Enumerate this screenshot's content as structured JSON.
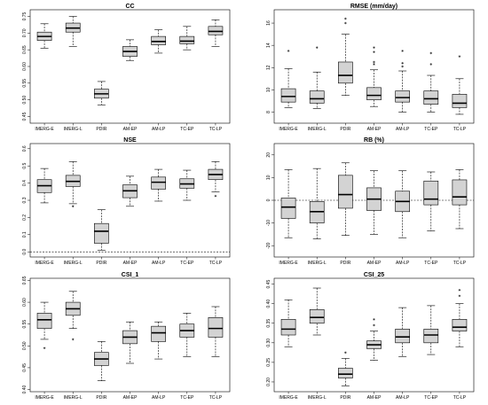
{
  "chart_data": [
    {
      "type": "boxplot",
      "title": "CC",
      "categories": [
        "IMERG-E",
        "IMERG-L",
        "PDIR",
        "AM-EP",
        "AM-LP",
        "TC-EP",
        "TC-LP"
      ],
      "ylim": [
        0.43,
        0.77
      ],
      "yticks": [
        0.45,
        0.5,
        0.55,
        0.6,
        0.65,
        0.7,
        0.75
      ],
      "ytick_labels": [
        "0.45",
        "0.50",
        "0.55",
        "0.60",
        "0.65",
        "0.70",
        "0.75"
      ],
      "box_color": "#d3d3d3",
      "reference_line": null,
      "boxes": [
        {
          "min": 0.655,
          "q1": 0.678,
          "median": 0.69,
          "q3": 0.703,
          "max": 0.728,
          "outliers": []
        },
        {
          "min": 0.66,
          "q1": 0.703,
          "median": 0.715,
          "q3": 0.73,
          "max": 0.75,
          "outliers": []
        },
        {
          "min": 0.485,
          "q1": 0.505,
          "median": 0.518,
          "q3": 0.532,
          "max": 0.555,
          "outliers": []
        },
        {
          "min": 0.618,
          "q1": 0.63,
          "median": 0.645,
          "q3": 0.66,
          "max": 0.68,
          "outliers": []
        },
        {
          "min": 0.64,
          "q1": 0.665,
          "median": 0.675,
          "q3": 0.69,
          "max": 0.71,
          "outliers": []
        },
        {
          "min": 0.65,
          "q1": 0.668,
          "median": 0.676,
          "q3": 0.69,
          "max": 0.72,
          "outliers": []
        },
        {
          "min": 0.66,
          "q1": 0.695,
          "median": 0.705,
          "q3": 0.72,
          "max": 0.74,
          "outliers": []
        }
      ]
    },
    {
      "type": "boxplot",
      "title": "RMSE (mm/day)",
      "categories": [
        "IMERG-E",
        "IMERG-L",
        "PDIR",
        "AM-EP",
        "AM-LP",
        "TC-EP",
        "TC-LP"
      ],
      "ylim": [
        7.0,
        17.2
      ],
      "yticks": [
        8,
        10,
        12,
        14,
        16
      ],
      "ytick_labels": [
        "8",
        "10",
        "12",
        "14",
        "16"
      ],
      "box_color": "#d3d3d3",
      "reference_line": null,
      "boxes": [
        {
          "min": 8.4,
          "q1": 8.9,
          "median": 9.4,
          "q3": 10.1,
          "max": 11.9,
          "outliers": [
            13.5
          ]
        },
        {
          "min": 8.3,
          "q1": 8.8,
          "median": 9.2,
          "q3": 9.9,
          "max": 11.6,
          "outliers": [
            13.8
          ]
        },
        {
          "min": 9.5,
          "q1": 10.6,
          "median": 11.3,
          "q3": 12.5,
          "max": 15.0,
          "outliers": [
            16.0,
            16.4
          ]
        },
        {
          "min": 8.5,
          "q1": 9.1,
          "median": 9.5,
          "q3": 10.2,
          "max": 11.8,
          "outliers": [
            12.3,
            12.5,
            13.4,
            13.8
          ]
        },
        {
          "min": 8.0,
          "q1": 8.9,
          "median": 9.3,
          "q3": 9.9,
          "max": 11.7,
          "outliers": [
            12.1,
            12.4,
            13.5
          ]
        },
        {
          "min": 8.0,
          "q1": 8.7,
          "median": 9.2,
          "q3": 9.9,
          "max": 11.3,
          "outliers": [
            12.3,
            13.3
          ]
        },
        {
          "min": 7.8,
          "q1": 8.4,
          "median": 8.8,
          "q3": 9.6,
          "max": 11.0,
          "outliers": [
            13.0
          ]
        }
      ]
    },
    {
      "type": "boxplot",
      "title": "NSE",
      "categories": [
        "IMERG-E",
        "IMERG-L",
        "PDIR",
        "AM-EP",
        "AM-LP",
        "TC-EP",
        "TC-LP"
      ],
      "ylim": [
        -0.03,
        0.63
      ],
      "yticks": [
        0.0,
        0.1,
        0.2,
        0.3,
        0.4,
        0.5,
        0.6
      ],
      "ytick_labels": [
        "0.0",
        "0.1",
        "0.2",
        "0.3",
        "0.4",
        "0.5",
        "0.6"
      ],
      "box_color": "#d3d3d3",
      "reference_line": 0.0,
      "boxes": [
        {
          "min": 0.285,
          "q1": 0.345,
          "median": 0.385,
          "q3": 0.42,
          "max": 0.485,
          "outliers": []
        },
        {
          "min": 0.28,
          "q1": 0.38,
          "median": 0.41,
          "q3": 0.445,
          "max": 0.525,
          "outliers": [
            0.265
          ]
        },
        {
          "min": 0.01,
          "q1": 0.05,
          "median": 0.12,
          "q3": 0.165,
          "max": 0.245,
          "outliers": []
        },
        {
          "min": 0.265,
          "q1": 0.315,
          "median": 0.355,
          "q3": 0.39,
          "max": 0.44,
          "outliers": []
        },
        {
          "min": 0.295,
          "q1": 0.365,
          "median": 0.405,
          "q3": 0.435,
          "max": 0.48,
          "outliers": []
        },
        {
          "min": 0.3,
          "q1": 0.37,
          "median": 0.395,
          "q3": 0.425,
          "max": 0.475,
          "outliers": []
        },
        {
          "min": 0.35,
          "q1": 0.42,
          "median": 0.45,
          "q3": 0.48,
          "max": 0.525,
          "outliers": [
            0.325
          ]
        }
      ]
    },
    {
      "type": "boxplot",
      "title": "RB (%)",
      "categories": [
        "IMERG-E",
        "IMERG-L",
        "PDIR",
        "AM-EP",
        "AM-LP",
        "TC-EP",
        "TC-LP"
      ],
      "ylim": [
        -25,
        25
      ],
      "yticks": [
        -20,
        -10,
        0,
        10,
        20
      ],
      "ytick_labels": [
        "-20",
        "-10",
        "0",
        "10",
        "20"
      ],
      "box_color": "#d3d3d3",
      "reference_line": 0,
      "boxes": [
        {
          "min": -16.5,
          "q1": -8.0,
          "median": -3.0,
          "q3": 1.0,
          "max": 13.5,
          "outliers": []
        },
        {
          "min": -17.0,
          "q1": -10.0,
          "median": -5.0,
          "q3": -0.5,
          "max": 14.0,
          "outliers": []
        },
        {
          "min": -15.5,
          "q1": -3.5,
          "median": 2.5,
          "q3": 11.0,
          "max": 16.5,
          "outliers": []
        },
        {
          "min": -15.0,
          "q1": -4.5,
          "median": 0.5,
          "q3": 5.5,
          "max": 13.0,
          "outliers": []
        },
        {
          "min": -16.5,
          "q1": -5.0,
          "median": -0.5,
          "q3": 4.0,
          "max": 13.0,
          "outliers": []
        },
        {
          "min": -13.5,
          "q1": -2.0,
          "median": 0.5,
          "q3": 8.5,
          "max": 12.5,
          "outliers": []
        },
        {
          "min": -12.5,
          "q1": -2.0,
          "median": 1.5,
          "q3": 9.0,
          "max": 13.5,
          "outliers": []
        }
      ]
    },
    {
      "type": "boxplot",
      "title": "CSI_1",
      "categories": [
        "IMERG-E",
        "IMERG-L",
        "PDIR",
        "AM-EP",
        "AM-LP",
        "TC-EP",
        "TC-LP"
      ],
      "ylim": [
        0.395,
        0.655
      ],
      "yticks": [
        0.4,
        0.45,
        0.5,
        0.55,
        0.6,
        0.65
      ],
      "ytick_labels": [
        "0.40",
        "0.45",
        "0.50",
        "0.55",
        "0.60",
        "0.65"
      ],
      "box_color": "#d3d3d3",
      "reference_line": null,
      "boxes": [
        {
          "min": 0.515,
          "q1": 0.54,
          "median": 0.56,
          "q3": 0.575,
          "max": 0.6,
          "outliers": [
            0.495
          ]
        },
        {
          "min": 0.54,
          "q1": 0.57,
          "median": 0.585,
          "q3": 0.6,
          "max": 0.625,
          "outliers": [
            0.515
          ]
        },
        {
          "min": 0.42,
          "q1": 0.455,
          "median": 0.47,
          "q3": 0.485,
          "max": 0.51,
          "outliers": []
        },
        {
          "min": 0.46,
          "q1": 0.505,
          "median": 0.52,
          "q3": 0.535,
          "max": 0.555,
          "outliers": []
        },
        {
          "min": 0.47,
          "q1": 0.51,
          "median": 0.53,
          "q3": 0.545,
          "max": 0.555,
          "outliers": []
        },
        {
          "min": 0.475,
          "q1": 0.52,
          "median": 0.535,
          "q3": 0.55,
          "max": 0.575,
          "outliers": []
        },
        {
          "min": 0.475,
          "q1": 0.52,
          "median": 0.54,
          "q3": 0.565,
          "max": 0.59,
          "outliers": []
        }
      ]
    },
    {
      "type": "boxplot",
      "title": "CSI_25",
      "categories": [
        "IMERG-E",
        "IMERG-L",
        "PDIR",
        "AM-EP",
        "AM-LP",
        "TC-EP",
        "TC-LP"
      ],
      "ylim": [
        0.175,
        0.465
      ],
      "yticks": [
        0.2,
        0.25,
        0.3,
        0.35,
        0.4,
        0.45
      ],
      "ytick_labels": [
        "0.20",
        "0.25",
        "0.30",
        "0.35",
        "0.40",
        "0.45"
      ],
      "box_color": "#d3d3d3",
      "reference_line": null,
      "boxes": [
        {
          "min": 0.29,
          "q1": 0.32,
          "median": 0.335,
          "q3": 0.36,
          "max": 0.41,
          "outliers": []
        },
        {
          "min": 0.32,
          "q1": 0.35,
          "median": 0.365,
          "q3": 0.385,
          "max": 0.44,
          "outliers": []
        },
        {
          "min": 0.19,
          "q1": 0.21,
          "median": 0.22,
          "q3": 0.235,
          "max": 0.26,
          "outliers": [
            0.275
          ]
        },
        {
          "min": 0.255,
          "q1": 0.285,
          "median": 0.295,
          "q3": 0.305,
          "max": 0.33,
          "outliers": [
            0.345,
            0.36
          ]
        },
        {
          "min": 0.265,
          "q1": 0.3,
          "median": 0.315,
          "q3": 0.335,
          "max": 0.39,
          "outliers": []
        },
        {
          "min": 0.27,
          "q1": 0.3,
          "median": 0.32,
          "q3": 0.335,
          "max": 0.395,
          "outliers": []
        },
        {
          "min": 0.29,
          "q1": 0.33,
          "median": 0.34,
          "q3": 0.36,
          "max": 0.4,
          "outliers": [
            0.42,
            0.435
          ]
        }
      ]
    }
  ]
}
